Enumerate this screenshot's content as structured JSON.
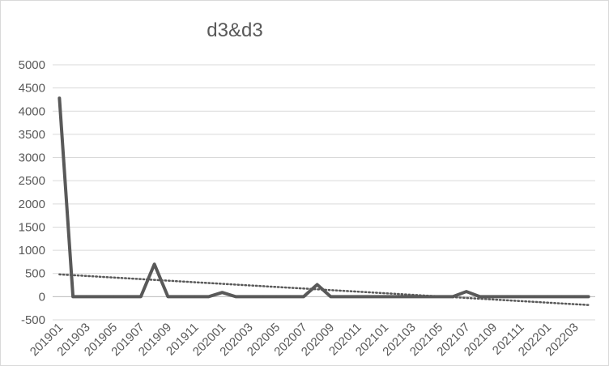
{
  "chart_data": {
    "type": "line",
    "title": "d3&d3",
    "xlabel": "",
    "ylabel": "",
    "ylim": [
      -500,
      5000
    ],
    "yticks": [
      -500,
      0,
      500,
      1000,
      1500,
      2000,
      2500,
      3000,
      3500,
      4000,
      4500,
      5000
    ],
    "grid": "horizontal",
    "legend": "none",
    "x_tick_labels": [
      "201901",
      "201903",
      "201905",
      "201907",
      "201909",
      "201911",
      "202001",
      "202003",
      "202005",
      "202007",
      "202009",
      "202011",
      "202101",
      "202103",
      "202105",
      "202107",
      "202109",
      "202111",
      "202201",
      "202203"
    ],
    "categories": [
      "201901",
      "201902",
      "201903",
      "201904",
      "201905",
      "201906",
      "201907",
      "201908",
      "201909",
      "201910",
      "201911",
      "201912",
      "202001",
      "202002",
      "202003",
      "202004",
      "202005",
      "202006",
      "202007",
      "202008",
      "202009",
      "202010",
      "202011",
      "202012",
      "202101",
      "202102",
      "202103",
      "202104",
      "202105",
      "202106",
      "202107",
      "202108",
      "202109",
      "202110",
      "202111",
      "202112",
      "202201",
      "202202",
      "202203",
      "202204"
    ],
    "series": [
      {
        "values": [
          4280,
          0,
          0,
          0,
          0,
          0,
          0,
          700,
          0,
          0,
          0,
          0,
          90,
          0,
          0,
          0,
          0,
          0,
          0,
          260,
          0,
          0,
          0,
          0,
          0,
          0,
          0,
          0,
          0,
          0,
          110,
          0,
          0,
          0,
          0,
          0,
          0,
          0,
          0,
          0
        ],
        "color": "#595959"
      }
    ],
    "trendline": {
      "type": "linear",
      "start": 480,
      "end": -180,
      "color": "#595959",
      "style": "dotted"
    }
  }
}
